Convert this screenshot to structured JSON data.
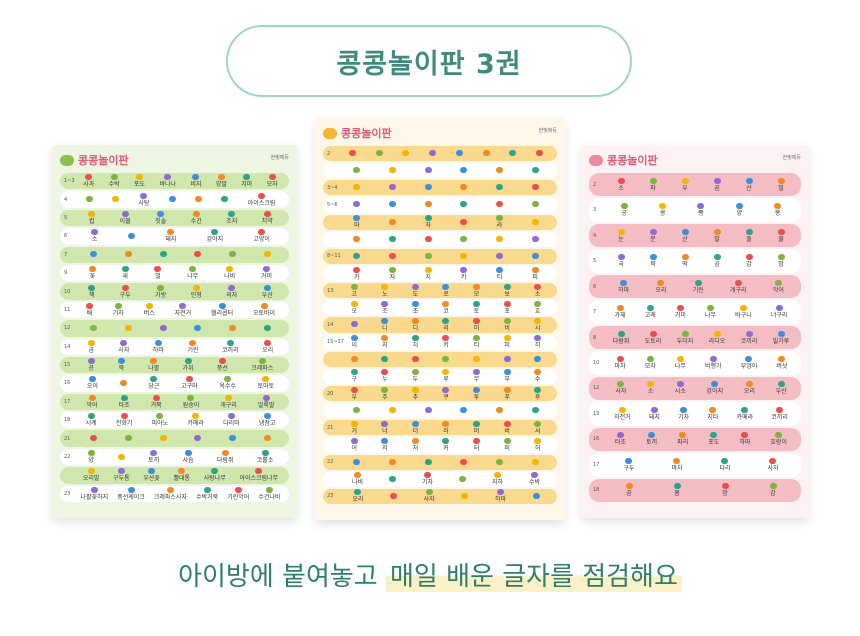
{
  "title": "콩콩놀이판 3권",
  "subtitle": {
    "plain": "아이방에 붙여놓고 ",
    "highlight": "매일 배운 글자를 점검해요"
  },
  "colors": {
    "green_card": "#eef6e3",
    "yellow_card": "#fdf7ea",
    "pink_card": "#fdf2f3",
    "green_band": "#cfe6ad",
    "yellow_band": "#f9d98d",
    "pink_band": "#f4bdc4",
    "accent_green": "#3f8b7b"
  },
  "cards": {
    "green": {
      "logo": "콩콩놀이판",
      "brand": "한빛에듀",
      "rows": [
        {
          "num": "1~3",
          "words": [
            "사과",
            "수박",
            "포도",
            "바나나",
            "비지",
            "양말",
            "치마",
            "모자"
          ]
        },
        {
          "num": "4",
          "words": [
            "",
            "",
            "사탕",
            "",
            "",
            "",
            "아이스크림"
          ]
        },
        {
          "num": "5",
          "words": [
            "컵",
            "이불",
            "칫솔",
            "수건",
            "조지",
            "치약"
          ]
        },
        {
          "num": "6",
          "words": [
            "소",
            "",
            "돼지",
            "강아지",
            "고양이"
          ]
        },
        {
          "num": "7",
          "words": [
            "",
            "",
            "",
            "",
            "",
            ""
          ]
        },
        {
          "num": "9",
          "words": [
            "꽃",
            "새",
            "벌",
            "나무",
            "나비",
            "거미"
          ]
        },
        {
          "num": "10",
          "words": [
            "책",
            "구두",
            "가방",
            "인형",
            "의자",
            "우산"
          ]
        },
        {
          "num": "11",
          "words": [
            "배",
            "기차",
            "버스",
            "자전거",
            "헬리콥터",
            "오토바이"
          ]
        },
        {
          "num": "12",
          "words": [
            "",
            "",
            "",
            "",
            "",
            ""
          ]
        },
        {
          "num": "14",
          "words": [
            "곰",
            "사자",
            "하마",
            "기린",
            "코끼리",
            "오리"
          ]
        },
        {
          "num": "15",
          "words": [
            "공",
            "북",
            "나팔",
            "가위",
            "풍선",
            "크레파스"
          ]
        },
        {
          "num": "16",
          "words": [
            "오이",
            "",
            "당근",
            "고구마",
            "옥수수",
            "토마토"
          ]
        },
        {
          "num": "17",
          "words": [
            "악어",
            "타조",
            "거북",
            "원숭이",
            "개구리",
            "얼룩말"
          ]
        },
        {
          "num": "18",
          "words": [
            "시계",
            "전화기",
            "피아노",
            "카메라",
            "다리미",
            "냉장고"
          ]
        },
        {
          "num": "21",
          "words": [
            "",
            "",
            "",
            "",
            "",
            ""
          ]
        },
        {
          "num": "22",
          "words": [
            "양",
            "",
            "토끼",
            "사슴",
            "다람쥐",
            "코뿔소"
          ]
        },
        {
          "num": "",
          "words": [
            "오리발",
            "구두통",
            "우산꽂",
            "빨대통",
            "사탕나무",
            "아이스크림나무"
          ]
        },
        {
          "num": "23",
          "words": [
            "나팔꽃하지",
            "풍선케이크",
            "크레파스사자",
            "수박거북",
            "기린악어",
            "수건나비"
          ]
        }
      ]
    },
    "yellow": {
      "logo": "콩콩놀이판",
      "brand": "한빛에듀",
      "rows": [
        {
          "num": "2",
          "words": [
            "",
            "",
            "",
            "",
            "",
            "",
            "",
            ""
          ]
        },
        {
          "num": "",
          "words": [
            "",
            "",
            "",
            "",
            "",
            ""
          ]
        },
        {
          "num": "3~4",
          "words": [
            "",
            "",
            "",
            "",
            "",
            ""
          ]
        },
        {
          "num": "5~6",
          "words": [
            "",
            "",
            "",
            "",
            "",
            ""
          ]
        },
        {
          "num": "",
          "words": [
            "마",
            "",
            "자",
            "",
            "라",
            ""
          ]
        },
        {
          "num": "",
          "words": [
            "",
            "",
            "",
            "",
            "",
            ""
          ]
        },
        {
          "num": "8~11",
          "words": [
            "",
            "",
            "",
            "",
            "",
            ""
          ]
        },
        {
          "num": "",
          "words": [
            "카",
            "자",
            "치",
            "키",
            "티",
            "피"
          ]
        },
        {
          "num": "13",
          "words": [
            "고",
            "노",
            "도",
            "로",
            "모",
            "보",
            "소"
          ]
        },
        {
          "num": "",
          "words": [
            "오",
            "조",
            "초",
            "코",
            "토",
            "포",
            "호"
          ]
        },
        {
          "num": "14",
          "words": [
            "",
            "니",
            "디",
            "리",
            "미",
            "비",
            "시"
          ]
        },
        {
          "num": "15~17",
          "words": [
            "이",
            "지",
            "치",
            "키",
            "티",
            "피",
            "히"
          ]
        },
        {
          "num": "",
          "words": [
            "",
            "",
            "",
            "",
            "",
            "",
            ""
          ]
        },
        {
          "num": "",
          "words": [
            "구",
            "누",
            "두",
            "루",
            "무",
            "부",
            "수"
          ]
        },
        {
          "num": "20",
          "words": [
            "우",
            "주",
            "추",
            "쿠",
            "투",
            "푸",
            "후"
          ]
        },
        {
          "num": "",
          "words": [
            "",
            "",
            "",
            "",
            "",
            ""
          ]
        },
        {
          "num": "21",
          "words": [
            "거",
            "너",
            "더",
            "러",
            "머",
            "버",
            "서"
          ]
        },
        {
          "num": "",
          "words": [
            "어",
            "저",
            "처",
            "커",
            "터",
            "퍼",
            "허"
          ]
        },
        {
          "num": "22",
          "words": [
            "",
            "",
            "",
            "",
            "",
            ""
          ]
        },
        {
          "num": "",
          "words": [
            "나비",
            "",
            "기차",
            "",
            "지하",
            "수박"
          ]
        },
        {
          "num": "23",
          "words": [
            "오리",
            "",
            "사자",
            "",
            "하마",
            ""
          ]
        }
      ]
    },
    "pink": {
      "logo": "콩콩놀이판",
      "brand": "한빛에듀",
      "rows": [
        {
          "num": "2",
          "words": [
            "소",
            "파",
            "우",
            "곰",
            "산",
            "벌"
          ]
        },
        {
          "num": "3",
          "words": [
            "공",
            "콩",
            "빵",
            "양",
            "똥"
          ]
        },
        {
          "num": "4",
          "words": [
            "눈",
            "문",
            "산",
            "발",
            "돌",
            "물"
          ]
        },
        {
          "num": "5",
          "words": [
            "국",
            "북",
            "떡",
            "곰",
            "감",
            "밤"
          ]
        },
        {
          "num": "6",
          "words": [
            "하마",
            "오리",
            "기린",
            "개구리",
            "악어"
          ]
        },
        {
          "num": "7",
          "words": [
            "가재",
            "고래",
            "거미",
            "나무",
            "바구니",
            "너구리"
          ]
        },
        {
          "num": "8",
          "words": [
            "다람쥐",
            "도토리",
            "두더지",
            "라디오",
            "코끼리",
            "밀가루"
          ]
        },
        {
          "num": "10",
          "words": [
            "마차",
            "모자",
            "나무",
            "비행기",
            "부엉이",
            "버섯"
          ]
        },
        {
          "num": "12",
          "words": [
            "사자",
            "소",
            "시소",
            "강아지",
            "오리",
            "우산"
          ]
        },
        {
          "num": "13",
          "words": [
            "자전거",
            "돼지",
            "기차",
            "지타",
            "카메라",
            "코끼리"
          ]
        },
        {
          "num": "16",
          "words": [
            "타조",
            "토끼",
            "파리",
            "포도",
            "하마",
            "호랑이"
          ]
        },
        {
          "num": "17",
          "words": [
            "구두",
            "마차",
            "다리",
            "사자"
          ]
        },
        {
          "num": "18",
          "words": [
            "곰",
            "봄",
            "밤",
            "감"
          ]
        }
      ]
    }
  }
}
